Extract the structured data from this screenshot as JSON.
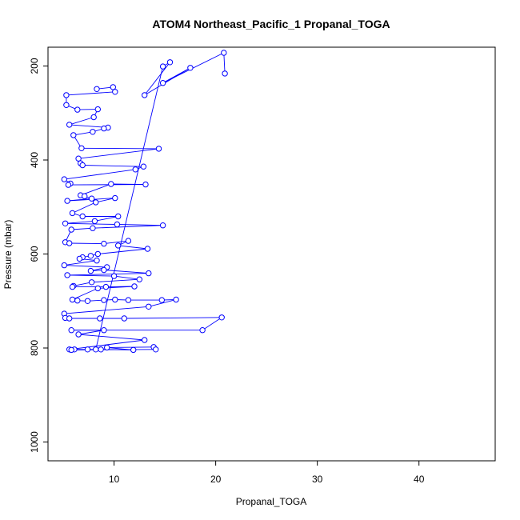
{
  "chart_data": {
    "type": "line",
    "title": "ATOM4 Northeast_Pacific_1 Propanal_TOGA",
    "xlabel": "Propanal_TOGA",
    "ylabel": "Pressure (mbar)",
    "xlim": [
      3.5,
      47.5
    ],
    "ylim": [
      1040,
      160
    ],
    "y_reversed": true,
    "x_ticks": [
      10,
      20,
      30,
      40
    ],
    "y_ticks": [
      200,
      400,
      600,
      800,
      1000
    ],
    "grid": false,
    "legend": "none",
    "series": [
      {
        "color": "#0000ff",
        "points": [
          [
            8.3,
            249
          ],
          [
            9.9,
            245
          ],
          [
            10.1,
            255
          ],
          [
            5.3,
            262
          ],
          [
            5.3,
            283
          ],
          [
            6.4,
            293
          ],
          [
            8.4,
            292
          ],
          [
            8.0,
            309
          ],
          [
            5.6,
            325
          ],
          [
            9.4,
            331
          ],
          [
            9.0,
            333
          ],
          [
            7.9,
            340
          ],
          [
            6.0,
            347
          ],
          [
            6.8,
            375
          ],
          [
            14.4,
            376
          ],
          [
            6.5,
            397
          ],
          [
            6.7,
            407
          ],
          [
            6.9,
            411
          ],
          [
            12.9,
            414
          ],
          [
            12.1,
            420
          ],
          [
            5.1,
            441
          ],
          [
            5.7,
            450
          ],
          [
            5.5,
            453
          ],
          [
            13.1,
            452
          ],
          [
            9.7,
            451
          ],
          [
            6.7,
            475
          ],
          [
            7.1,
            477
          ],
          [
            7.8,
            482
          ],
          [
            5.4,
            487
          ],
          [
            10.1,
            481
          ],
          [
            8.2,
            490
          ],
          [
            5.9,
            513
          ],
          [
            6.9,
            520
          ],
          [
            10.4,
            520
          ],
          [
            8.1,
            530
          ],
          [
            5.2,
            535
          ],
          [
            10.3,
            537
          ],
          [
            14.8,
            539
          ],
          [
            7.9,
            545
          ],
          [
            5.8,
            548
          ],
          [
            5.2,
            575
          ],
          [
            5.6,
            577
          ],
          [
            9.0,
            578
          ],
          [
            11.4,
            572
          ],
          [
            10.4,
            582
          ],
          [
            13.3,
            589
          ],
          [
            8.4,
            600
          ],
          [
            7.7,
            604
          ],
          [
            6.9,
            607
          ],
          [
            6.6,
            610
          ],
          [
            8.3,
            614
          ],
          [
            5.1,
            624
          ],
          [
            9.3,
            628
          ],
          [
            7.7,
            636
          ],
          [
            9.0,
            634
          ],
          [
            13.4,
            641
          ],
          [
            5.4,
            645
          ],
          [
            10.0,
            647
          ],
          [
            12.5,
            654
          ],
          [
            7.8,
            660
          ],
          [
            6.0,
            668
          ],
          [
            5.9,
            670
          ],
          [
            9.2,
            670
          ],
          [
            12.0,
            669
          ],
          [
            8.4,
            673
          ],
          [
            5.9,
            697
          ],
          [
            6.4,
            699
          ],
          [
            7.4,
            700
          ],
          [
            9.0,
            698
          ],
          [
            10.1,
            697
          ],
          [
            11.4,
            698
          ],
          [
            14.7,
            698
          ],
          [
            16.1,
            697
          ],
          [
            13.4,
            712
          ],
          [
            5.1,
            727
          ],
          [
            5.2,
            736
          ],
          [
            5.6,
            737
          ],
          [
            8.6,
            737
          ],
          [
            11.0,
            737
          ],
          [
            20.6,
            735
          ],
          [
            18.7,
            762
          ],
          [
            5.8,
            762
          ],
          [
            9.0,
            762
          ],
          [
            6.5,
            771
          ],
          [
            13.0,
            783
          ],
          [
            5.6,
            803
          ],
          [
            6.1,
            803
          ],
          [
            7.4,
            803
          ],
          [
            8.7,
            803
          ],
          [
            11.9,
            804
          ],
          [
            9.3,
            799
          ],
          [
            13.9,
            798
          ],
          [
            14.1,
            803
          ],
          [
            5.8,
            804
          ],
          [
            8.2,
            803
          ],
          [
            14.8,
            201
          ],
          [
            15.5,
            192
          ],
          [
            13.0,
            262
          ],
          [
            17.5,
            204
          ],
          [
            14.8,
            236
          ],
          [
            20.8,
            172
          ],
          [
            20.9,
            216
          ]
        ]
      }
    ]
  }
}
